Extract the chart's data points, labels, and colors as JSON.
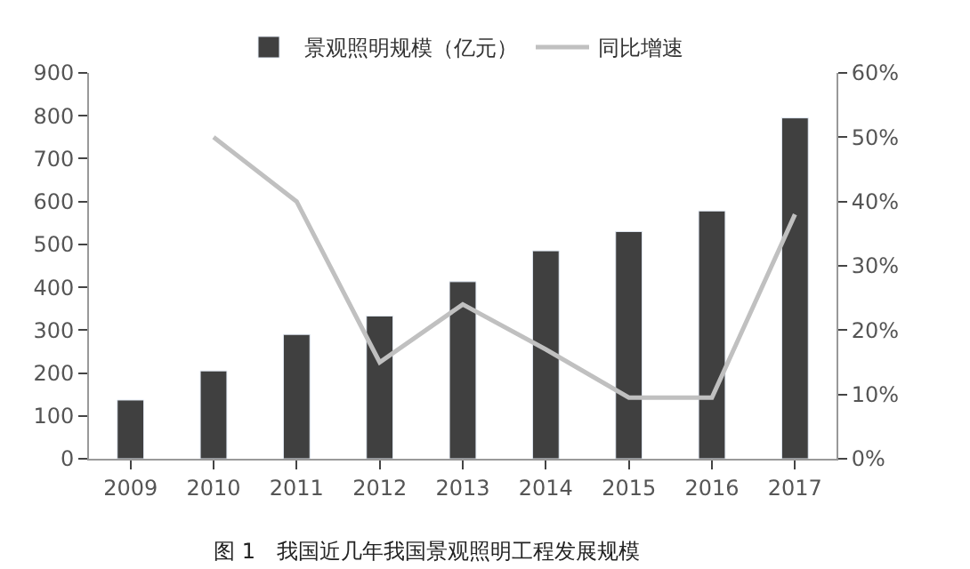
{
  "chart_data": {
    "type": "bar",
    "categories": [
      "2009",
      "2010",
      "2011",
      "2012",
      "2013",
      "2014",
      "2015",
      "2016",
      "2017"
    ],
    "series": [
      {
        "name": "景观照明规模（亿元）",
        "color": "#404040",
        "values": [
          137,
          205,
          290,
          333,
          413,
          485,
          530,
          578,
          795
        ]
      },
      {
        "name": "同比增速",
        "type": "line",
        "axis": "y2",
        "color": "#c0c0c0",
        "values": [
          null,
          50,
          40,
          15,
          24,
          17,
          9.5,
          9.5,
          38
        ]
      }
    ],
    "ylim": [
      0,
      900
    ],
    "yticks": [
      0,
      100,
      200,
      300,
      400,
      500,
      600,
      700,
      800,
      900
    ],
    "y2lim": [
      0,
      60
    ],
    "y2ticks": [
      {
        "value": 0,
        "label": "0%"
      },
      {
        "value": 10,
        "label": "10%"
      },
      {
        "value": 20,
        "label": "20%"
      },
      {
        "value": 30,
        "label": "30%"
      },
      {
        "value": 40,
        "label": "40%"
      },
      {
        "value": 50,
        "label": "50%"
      },
      {
        "value": 60,
        "label": "60%"
      }
    ],
    "legend": "top",
    "marker": "none",
    "annotations": [
      "图 1　我国近几年我国景观照明工程发展规模"
    ]
  }
}
